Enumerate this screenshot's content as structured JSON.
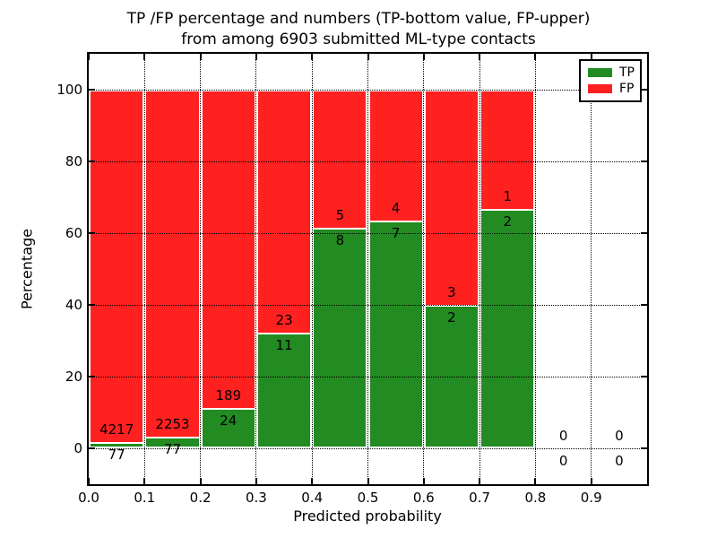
{
  "figure": {
    "title_line1": "TP /FP percentage and numbers (TP-bottom value, FP-upper)",
    "title_line2": "from among 6903 submitted ML-type contacts",
    "xlabel": "Predicted probability",
    "ylabel": "Percentage"
  },
  "legend": {
    "position": "upper right",
    "items": [
      {
        "label": "TP",
        "color": "#228b22"
      },
      {
        "label": "FP",
        "color": "#ff2020"
      }
    ]
  },
  "chart_data": {
    "type": "bar",
    "stacked": true,
    "normalized_to_percent": true,
    "title": "TP /FP percentage and numbers (TP-bottom value, FP-upper)\nfrom among 6903 submitted ML-type contacts",
    "xlabel": "Predicted probability",
    "ylabel": "Percentage",
    "xlim": [
      0,
      1.0
    ],
    "ylim": [
      -10,
      110
    ],
    "xticks": [
      "0.0",
      "0.1",
      "0.2",
      "0.3",
      "0.4",
      "0.5",
      "0.6",
      "0.7",
      "0.8",
      "0.9"
    ],
    "yticks": [
      0,
      20,
      40,
      60,
      80,
      100
    ],
    "grid": "dotted, drawn over bars",
    "total_contacts": 6903,
    "bins": [
      {
        "x_start": 0.0,
        "x_end": 0.1,
        "tp": 77,
        "fp": 4217
      },
      {
        "x_start": 0.1,
        "x_end": 0.2,
        "tp": 77,
        "fp": 2253
      },
      {
        "x_start": 0.2,
        "x_end": 0.3,
        "tp": 24,
        "fp": 189
      },
      {
        "x_start": 0.3,
        "x_end": 0.4,
        "tp": 11,
        "fp": 23
      },
      {
        "x_start": 0.4,
        "x_end": 0.5,
        "tp": 8,
        "fp": 5
      },
      {
        "x_start": 0.5,
        "x_end": 0.6,
        "tp": 7,
        "fp": 4
      },
      {
        "x_start": 0.6,
        "x_end": 0.7,
        "tp": 2,
        "fp": 3
      },
      {
        "x_start": 0.7,
        "x_end": 0.8,
        "tp": 2,
        "fp": 1
      },
      {
        "x_start": 0.8,
        "x_end": 0.9,
        "tp": 0,
        "fp": 0
      },
      {
        "x_start": 0.9,
        "x_end": 1.0,
        "tp": 0,
        "fp": 0
      }
    ],
    "series": [
      {
        "name": "TP",
        "color": "#228b22",
        "values_pct": [
          1.79,
          3.3,
          11.27,
          32.35,
          61.54,
          63.64,
          40.0,
          66.67,
          0,
          0
        ]
      },
      {
        "name": "FP",
        "color": "#ff2020",
        "values_pct": [
          98.21,
          96.7,
          88.73,
          67.65,
          38.46,
          36.36,
          60.0,
          33.33,
          0,
          0
        ]
      }
    ]
  }
}
